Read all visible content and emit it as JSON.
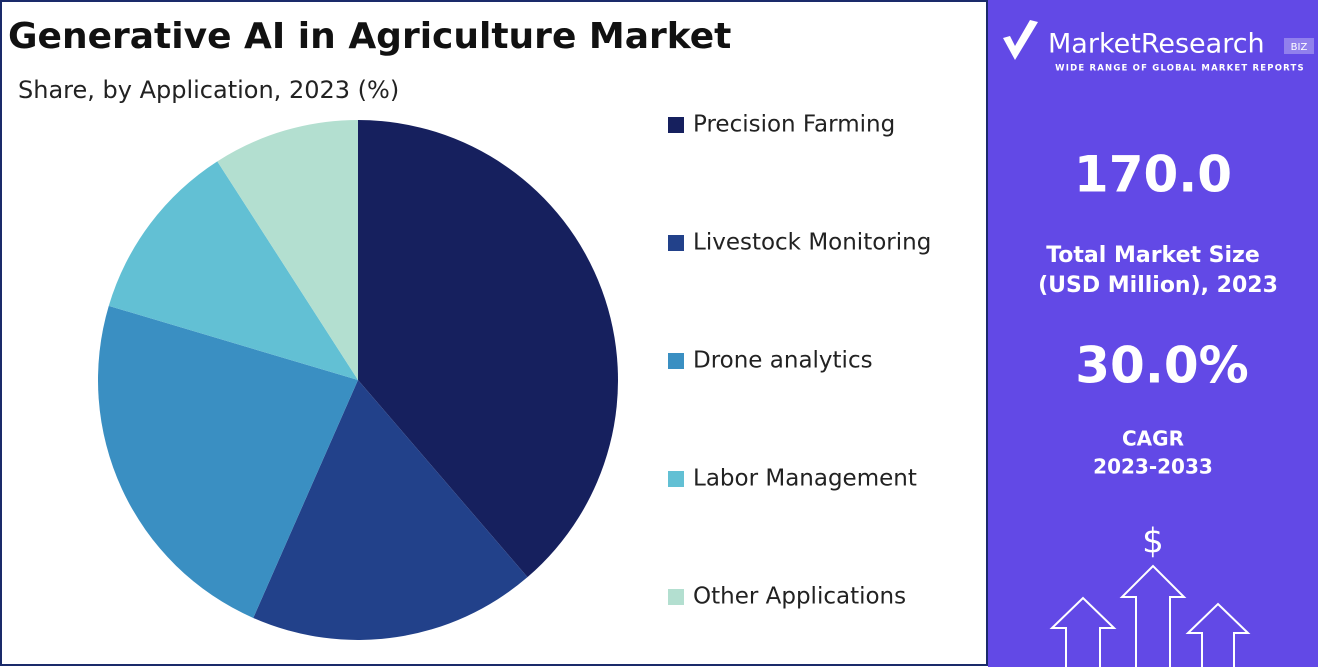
{
  "chart_data": {
    "type": "pie",
    "title": "Generative AI in Agriculture Market",
    "subtitle": "Share, by Application, 2023 (%)",
    "categories": [
      "Precision Farming",
      "Livestock Monitoring",
      "Drone analytics",
      "Labor Management",
      "Other Applications"
    ],
    "values": [
      38.7,
      17.9,
      23.0,
      11.3,
      9.1
    ],
    "colors": [
      "#16205e",
      "#22418a",
      "#3a8fc2",
      "#62c0d4",
      "#b3dfd0"
    ]
  },
  "panel": {
    "brand": "MarketResearch",
    "brand_tag": "BIZ",
    "tagline": "WIDE RANGE OF GLOBAL MARKET REPORTS",
    "market_size": "170.0",
    "market_size_label": [
      "Total Market Size",
      "(USD Million), 2023"
    ],
    "cagr": "30.0%",
    "cagr_label": [
      "CAGR",
      "2023-2033"
    ],
    "currency": "$"
  }
}
